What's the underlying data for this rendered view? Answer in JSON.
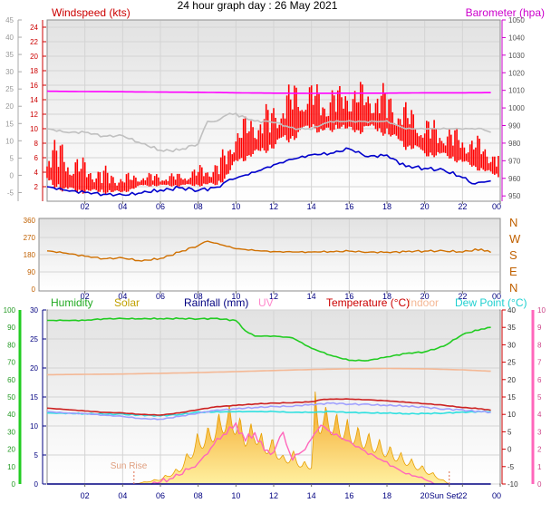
{
  "title": "24 hour graph day : 26 May 2021",
  "chart_data": [
    {
      "type": "line",
      "panel": "wind-pressure",
      "x_ticks": [
        "02",
        "04",
        "06",
        "08",
        "10",
        "12",
        "14",
        "16",
        "18",
        "20",
        "22",
        "00"
      ],
      "left_label": "Windspeed (kts)",
      "left_inner_ticks": [
        "24",
        "22",
        "20",
        "18",
        "16",
        "14",
        "12",
        "10",
        "8",
        "6",
        "4",
        "2"
      ],
      "left_inner_range": [
        0,
        25
      ],
      "left_outer_ticks": [
        "45",
        "40",
        "35",
        "30",
        "25",
        "20",
        "15",
        "10",
        "5",
        "0",
        "-5"
      ],
      "left_outer_range": [
        -7.5,
        45
      ],
      "right_label": "Barometer (hpa)",
      "right_ticks": [
        "1050",
        "1040",
        "1030",
        "1020",
        "1010",
        "1000",
        "990",
        "980",
        "970",
        "960",
        "950"
      ],
      "right_range": [
        947,
        1050
      ],
      "series": [
        {
          "name": "Windspeed (kts)",
          "color": "#ff0000",
          "kind": "gust-band",
          "x": [
            0,
            1,
            2,
            3,
            4,
            5,
            6,
            7,
            8,
            9,
            9.5,
            10,
            11,
            12,
            12.5,
            13,
            13.5,
            14,
            14.5,
            15,
            15.5,
            16,
            16.5,
            17,
            17.5,
            18,
            18.5,
            19,
            19.5,
            20,
            21,
            22,
            23,
            24
          ],
          "low": [
            2,
            1,
            1,
            1,
            1,
            2,
            2,
            2,
            2,
            2,
            3,
            5,
            6,
            7,
            8,
            8,
            9,
            10,
            9,
            9,
            10,
            9,
            9,
            10,
            9,
            9,
            8,
            7,
            7,
            6,
            6,
            5,
            4,
            3
          ],
          "high": [
            10,
            8,
            6,
            5,
            4,
            4,
            4,
            4,
            5,
            6,
            8,
            11,
            13,
            14,
            16,
            17,
            17,
            17,
            16,
            17,
            16,
            18,
            17,
            16,
            17,
            16,
            15,
            14,
            13,
            12,
            11,
            10,
            9,
            7
          ]
        },
        {
          "name": "Pressure",
          "color": "#ff00ff",
          "x": [
            0,
            2,
            4,
            6,
            8,
            10,
            12,
            14,
            16,
            18,
            20,
            22,
            23.5
          ],
          "y": [
            1009.5,
            1009.3,
            1009.2,
            1009.0,
            1008.9,
            1008.6,
            1008.4,
            1008.3,
            1008.4,
            1008.4,
            1008.6,
            1008.6,
            1008.7
          ]
        },
        {
          "name": "Wind chill",
          "color": "#c0c0c0",
          "x": [
            0,
            1,
            2,
            3,
            4,
            5,
            6,
            7,
            8,
            8.5,
            9,
            9.5,
            10,
            11,
            12,
            13,
            14,
            15,
            16,
            17,
            18,
            19,
            20,
            21,
            22,
            23,
            23.5
          ],
          "y": [
            10,
            9.5,
            9.5,
            9,
            9,
            8,
            7,
            7,
            8,
            11,
            11,
            12,
            12,
            11,
            11,
            10,
            10,
            11,
            11,
            11,
            11,
            10,
            10,
            10,
            10,
            10,
            9.5
          ]
        },
        {
          "name": "Avg wind (kts)",
          "color": "#0000cc",
          "x": [
            0,
            1,
            2,
            3,
            4,
            5,
            6,
            7,
            8,
            9,
            9.5,
            10,
            11,
            12,
            13,
            14,
            15,
            16,
            17,
            18,
            19,
            20,
            21,
            22,
            22.5,
            23,
            23.5
          ],
          "y": [
            2,
            1.5,
            1.2,
            1.0,
            0.8,
            1.2,
            1.5,
            1.8,
            1.6,
            1.8,
            2.8,
            3.2,
            4.0,
            5.0,
            5.8,
            6.4,
            6.6,
            7.2,
            6.2,
            6.3,
            4.8,
            4.6,
            4.2,
            3.4,
            2.4,
            2.6,
            2.8
          ]
        }
      ]
    },
    {
      "type": "line",
      "panel": "wind-direction",
      "x_ticks": [
        "02",
        "04",
        "06",
        "08",
        "10",
        "12",
        "14",
        "16",
        "18",
        "20",
        "22",
        "00"
      ],
      "left_ticks": [
        "360",
        "270",
        "180",
        "90",
        "0"
      ],
      "right_ticks": [
        "N",
        "W",
        "S",
        "E",
        "N"
      ],
      "y_range": [
        0,
        360
      ],
      "series": [
        {
          "name": "Wind direction",
          "color": "#d07000",
          "x": [
            0,
            1,
            2,
            3,
            4,
            5,
            6,
            7,
            8,
            8.5,
            9,
            10,
            11,
            12,
            13,
            14,
            15,
            16,
            17,
            18,
            19,
            20,
            21,
            22,
            23,
            23.5
          ],
          "y": [
            200,
            188,
            172,
            160,
            162,
            148,
            160,
            192,
            230,
            250,
            238,
            212,
            202,
            196,
            194,
            194,
            196,
            198,
            194,
            192,
            196,
            200,
            198,
            196,
            208,
            192
          ]
        }
      ]
    },
    {
      "type": "line",
      "panel": "temperature-humidity",
      "x_ticks": [
        "02",
        "04",
        "06",
        "08",
        "10",
        "12",
        "14",
        "16",
        "18",
        "20",
        "Sun Set",
        "22",
        "00"
      ],
      "legend": [
        "Humidity",
        "Solar",
        "Rainfall (mm)",
        "UV",
        "Temperature (°C)",
        "Indoor",
        "Dew Point (°C)"
      ],
      "annotations": [
        "Sun Rise"
      ],
      "left_outer_ticks": [
        "100",
        "90",
        "80",
        "70",
        "60",
        "50",
        "40",
        "30",
        "20",
        "10",
        "0"
      ],
      "left_outer_range": [
        0,
        100
      ],
      "left_inner_ticks": [
        "30",
        "25",
        "20",
        "15",
        "10",
        "5",
        "0"
      ],
      "left_inner_range": [
        0,
        30
      ],
      "right_inner_ticks": [
        "40",
        "35",
        "30",
        "25",
        "20",
        "15",
        "10",
        "5",
        "0",
        "-5",
        "-10"
      ],
      "right_inner_range": [
        -10,
        40
      ],
      "right_outer_ticks": [
        "10",
        "9",
        "8",
        "7",
        "6",
        "5",
        "4",
        "3",
        "2",
        "1",
        "0"
      ],
      "right_outer_range": [
        0,
        10
      ],
      "sunrise_hour": 4.6,
      "sunset_hour": 21.3,
      "series": [
        {
          "name": "Humidity",
          "color": "#22cc22",
          "axis": "humidity",
          "x": [
            0,
            1,
            2,
            3,
            4,
            5,
            6,
            7,
            8,
            9,
            10,
            10.5,
            11,
            12,
            13,
            14,
            15,
            16,
            17,
            18,
            19,
            20,
            21,
            22,
            23,
            23.5
          ],
          "y": [
            94,
            94,
            94,
            95,
            95,
            95,
            95,
            95,
            95,
            95,
            94,
            88,
            85,
            85,
            84,
            78,
            74,
            71,
            71,
            73,
            75,
            76,
            79,
            86,
            89,
            90
          ]
        },
        {
          "name": "Indoor",
          "color": "#f4b895",
          "axis": "temp",
          "x": [
            0,
            2,
            4,
            6,
            8,
            10,
            12,
            14,
            16,
            18,
            20,
            22,
            23.5
          ],
          "y": [
            21.4,
            21.5,
            21.6,
            21.8,
            22,
            22.3,
            22.6,
            22.9,
            23.1,
            23.2,
            23.1,
            22.8,
            22.4
          ]
        },
        {
          "name": "Temperature (°C)",
          "color": "#cc2222",
          "axis": "temp",
          "x": [
            0,
            1,
            2,
            3,
            4,
            5,
            6,
            7,
            8,
            9,
            10,
            11,
            12,
            13,
            14,
            14.5,
            15,
            16,
            17,
            18,
            19,
            20,
            21,
            22,
            23,
            23.5
          ],
          "y": [
            11.8,
            11.4,
            11.0,
            10.6,
            10.4,
            10.0,
            9.8,
            10.4,
            11.4,
            12.2,
            12.6,
            13.0,
            13.2,
            13.4,
            13.6,
            14.2,
            14.4,
            14.4,
            14.2,
            13.9,
            13.5,
            13.1,
            12.6,
            12.0,
            11.6,
            11.2
          ]
        },
        {
          "name": "Apparent temperature",
          "color": "#a0a0ff",
          "axis": "temp",
          "x": [
            0,
            1,
            2,
            3,
            4,
            5,
            6,
            7,
            8,
            9,
            10,
            11,
            12,
            13,
            14,
            15,
            16,
            17,
            18,
            19,
            20,
            21,
            22,
            23,
            23.5
          ],
          "y": [
            10.8,
            10.4,
            10.2,
            9.8,
            9.4,
            8.8,
            8.6,
            9.4,
            10.4,
            11.2,
            11.6,
            12.0,
            12.2,
            12.4,
            12.8,
            13.2,
            13.0,
            12.8,
            12.6,
            12.4,
            12.0,
            11.6,
            11.2,
            10.8,
            10.6
          ]
        },
        {
          "name": "Dew Point (°C)",
          "color": "#30e0e0",
          "axis": "temp",
          "x": [
            0,
            2,
            4,
            6,
            7,
            8,
            10,
            12,
            13,
            14,
            15,
            16,
            17,
            18,
            19,
            20,
            21,
            22,
            23,
            23.5
          ],
          "y": [
            10.4,
            10.2,
            10.0,
            9.6,
            10.0,
            10.6,
            10.8,
            10.8,
            10.6,
            10.6,
            10.8,
            10.6,
            10.4,
            10.4,
            10.2,
            10.2,
            10.4,
            10.6,
            10.8,
            10.8
          ]
        },
        {
          "name": "Solar",
          "color": "#f0b000",
          "axis": "solar",
          "x": [
            4.6,
            6,
            7,
            7.5,
            8,
            8.5,
            9,
            9.5,
            10,
            10.5,
            11,
            11.5,
            12,
            12.5,
            13,
            13.5,
            14,
            14.2,
            14.4,
            14.6,
            16,
            18,
            20,
            21.3
          ],
          "y": [
            0,
            1,
            3,
            6,
            9,
            10,
            12,
            14,
            13,
            10,
            11,
            8,
            8,
            5,
            6,
            4,
            4,
            16,
            13,
            14,
            11,
            7,
            3,
            0
          ]
        },
        {
          "name": "UV",
          "color": "#ff66bb",
          "axis": "uv",
          "x": [
            5.5,
            6.5,
            7.5,
            8,
            8.5,
            9,
            9.5,
            10,
            10.5,
            11,
            11.5,
            12,
            12.5,
            13,
            13.5,
            14,
            14.5,
            15,
            16,
            17,
            18,
            19,
            20,
            20.5
          ],
          "y": [
            0,
            0.3,
            0.8,
            1.2,
            1.8,
            2.5,
            3.0,
            3.4,
            2.5,
            3.0,
            1.8,
            2.0,
            2.8,
            1.5,
            1.8,
            2.6,
            3.4,
            3.0,
            2.4,
            1.8,
            1.2,
            0.6,
            0.3,
            0
          ]
        },
        {
          "name": "Rainfall (mm)",
          "color": "#000080",
          "axis": "rain",
          "x": [
            0,
            23.5
          ],
          "y": [
            0,
            0
          ]
        }
      ]
    }
  ]
}
